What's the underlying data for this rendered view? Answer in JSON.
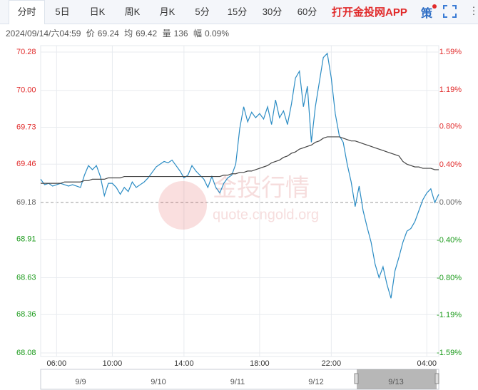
{
  "toolbar": {
    "tabs": [
      "分时",
      "5日",
      "日K",
      "周K",
      "月K",
      "5分",
      "15分",
      "30分",
      "60分"
    ],
    "app_link": "打开金投网APP",
    "strategy": "策"
  },
  "info": {
    "datetime": "2024/09/14/六04:59",
    "price_label": "价",
    "price": "69.24",
    "avg_label": "均",
    "avg": "69.42",
    "volume_label": "量",
    "volume": "136",
    "range_label": "幅",
    "range": "0.09%"
  },
  "watermark": {
    "brand": "金投行情",
    "url": "quote.cngold.org"
  },
  "chart_data": {
    "type": "line",
    "x": [
      0,
      1,
      2,
      3,
      4,
      5,
      6,
      7,
      8,
      9,
      10,
      11,
      12,
      13,
      14,
      15,
      16,
      17,
      18,
      19,
      20,
      21,
      22,
      23,
      24,
      25,
      26,
      27,
      28,
      29,
      30,
      31,
      32,
      33,
      34,
      35,
      36,
      37,
      38,
      39,
      40,
      41,
      42,
      43,
      44,
      45,
      46,
      47,
      48,
      49,
      50,
      51,
      52,
      53,
      54,
      55,
      56,
      57,
      58,
      59,
      60,
      61,
      62,
      63,
      64,
      65,
      66,
      67,
      68,
      69,
      70,
      71,
      72,
      73,
      74,
      75,
      76,
      77,
      78,
      79,
      80,
      81,
      82,
      83,
      84,
      85,
      86,
      87,
      88,
      89,
      90,
      91,
      92,
      93,
      94,
      95,
      96,
      97,
      98,
      99,
      100
    ],
    "series": [
      {
        "color": "#2b8cc4",
        "values": [
          69.35,
          69.31,
          69.32,
          69.3,
          69.31,
          69.32,
          69.31,
          69.3,
          69.31,
          69.3,
          69.29,
          69.38,
          69.45,
          69.42,
          69.45,
          69.37,
          69.23,
          69.32,
          69.32,
          69.29,
          69.24,
          69.29,
          69.26,
          69.33,
          69.29,
          69.31,
          69.33,
          69.36,
          69.4,
          69.44,
          69.46,
          69.48,
          69.47,
          69.49,
          69.45,
          69.41,
          69.36,
          69.38,
          69.45,
          69.41,
          69.38,
          69.35,
          69.29,
          69.37,
          69.29,
          69.25,
          69.32,
          69.36,
          69.38,
          69.46,
          69.72,
          69.88,
          69.77,
          69.84,
          69.8,
          69.83,
          69.79,
          69.88,
          69.75,
          69.93,
          69.8,
          69.85,
          69.75,
          69.9,
          70.09,
          70.14,
          69.88,
          70.03,
          69.62,
          69.88,
          70.06,
          70.24,
          70.27,
          70.09,
          69.83,
          69.67,
          69.62,
          69.46,
          69.33,
          69.15,
          69.3,
          69.12,
          69.0,
          68.89,
          68.73,
          68.63,
          68.71,
          68.58,
          68.48,
          68.68,
          68.78,
          68.89,
          68.97,
          68.99,
          69.04,
          69.12,
          69.2,
          69.25,
          69.28,
          69.18,
          69.24
        ]
      },
      {
        "color": "#444444",
        "values": [
          69.32,
          69.32,
          69.32,
          69.32,
          69.32,
          69.32,
          69.33,
          69.33,
          69.33,
          69.33,
          69.33,
          69.34,
          69.34,
          69.35,
          69.35,
          69.35,
          69.35,
          69.36,
          69.36,
          69.36,
          69.36,
          69.37,
          69.37,
          69.37,
          69.37,
          69.37,
          69.37,
          69.37,
          69.37,
          69.37,
          69.37,
          69.37,
          69.37,
          69.37,
          69.37,
          69.37,
          69.37,
          69.37,
          69.37,
          69.37,
          69.37,
          69.37,
          69.37,
          69.37,
          69.37,
          69.37,
          69.38,
          69.38,
          69.39,
          69.39,
          69.4,
          69.4,
          69.41,
          69.41,
          69.42,
          69.43,
          69.44,
          69.45,
          69.47,
          69.48,
          69.49,
          69.51,
          69.52,
          69.54,
          69.55,
          69.57,
          69.58,
          69.59,
          69.6,
          69.62,
          69.63,
          69.65,
          69.66,
          69.66,
          69.66,
          69.66,
          69.65,
          69.64,
          69.63,
          69.63,
          69.62,
          69.61,
          69.6,
          69.59,
          69.58,
          69.57,
          69.56,
          69.55,
          69.54,
          69.53,
          69.52,
          69.48,
          69.46,
          69.45,
          69.44,
          69.44,
          69.43,
          69.43,
          69.43,
          69.42,
          69.42
        ]
      }
    ],
    "xlim": [
      0,
      100
    ],
    "xticks": [
      {
        "value": 4,
        "label": "06:00"
      },
      {
        "value": 18,
        "label": "10:00"
      },
      {
        "value": 36,
        "label": "14:00"
      },
      {
        "value": 55,
        "label": "18:00"
      },
      {
        "value": 73,
        "label": "22:00"
      },
      {
        "value": 97,
        "label": "04:00"
      }
    ],
    "ylim": [
      68.08,
      70.28
    ],
    "yticks": [
      70.28,
      {
        "value": 70.0,
        "label": "70.00"
      },
      69.73,
      69.46,
      69.18,
      68.91,
      68.63,
      68.36,
      68.08
    ],
    "y2lim": [
      -1.59,
      1.59
    ],
    "y2ticks": [
      {
        "value": 1.59,
        "label": "1.59%"
      },
      {
        "value": 1.19,
        "label": "1.19%"
      },
      {
        "value": 0.8,
        "label": "0.80%"
      },
      {
        "value": 0.4,
        "label": "0.40%"
      },
      {
        "value": 0,
        "label": "0.00%"
      },
      {
        "value": -0.4,
        "label": "-0.40%"
      },
      {
        "value": -0.8,
        "label": "-0.80%"
      },
      {
        "value": -1.19,
        "label": "-1.19%"
      },
      {
        "value": -1.59,
        "label": "-1.59%"
      }
    ],
    "grid": true
  },
  "navigator": {
    "labels": [
      "9/9",
      "9/10",
      "9/11",
      "9/12",
      "9/13"
    ]
  }
}
